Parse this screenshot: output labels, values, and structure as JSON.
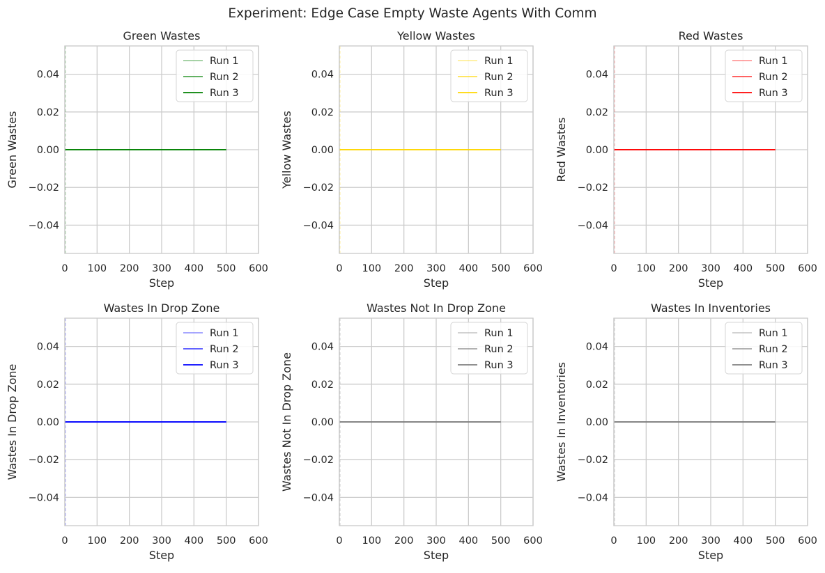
{
  "figure": {
    "suptitle": "Experiment: Edge Case Empty Waste Agents With Comm"
  },
  "chart_data": [
    {
      "type": "line",
      "title": "Green Wastes",
      "xlabel": "Step",
      "ylabel": "Green Wastes",
      "xlim": [
        0,
        600
      ],
      "ylim": [
        -0.055,
        0.055
      ],
      "xticks": [
        "0",
        "100",
        "200",
        "300",
        "400",
        "500",
        "600"
      ],
      "yticks": [
        "0.04",
        "0.02",
        "0.00",
        "−0.02",
        "−0.04"
      ],
      "grid": true,
      "legend_position": "top-right",
      "series": [
        {
          "name": "Run 1",
          "color": "#008000",
          "opacity": 0.4,
          "x": [
            0,
            500
          ],
          "y": [
            0,
            0
          ]
        },
        {
          "name": "Run 2",
          "color": "#008000",
          "opacity": 0.7,
          "x": [
            0,
            500
          ],
          "y": [
            0,
            0
          ]
        },
        {
          "name": "Run 3",
          "color": "#008000",
          "opacity": 1.0,
          "x": [
            0,
            500
          ],
          "y": [
            0,
            0
          ]
        }
      ]
    },
    {
      "type": "line",
      "title": "Yellow Wastes",
      "xlabel": "Step",
      "ylabel": "Yellow Wastes",
      "xlim": [
        0,
        600
      ],
      "ylim": [
        -0.055,
        0.055
      ],
      "xticks": [
        "0",
        "100",
        "200",
        "300",
        "400",
        "500",
        "600"
      ],
      "yticks": [
        "0.04",
        "0.02",
        "0.00",
        "−0.02",
        "−0.04"
      ],
      "grid": true,
      "legend_position": "top-right",
      "series": [
        {
          "name": "Run 1",
          "color": "#FFD700",
          "opacity": 0.4,
          "x": [
            0,
            500
          ],
          "y": [
            0,
            0
          ]
        },
        {
          "name": "Run 2",
          "color": "#FFD700",
          "opacity": 0.7,
          "x": [
            0,
            500
          ],
          "y": [
            0,
            0
          ]
        },
        {
          "name": "Run 3",
          "color": "#FFD700",
          "opacity": 1.0,
          "x": [
            0,
            500
          ],
          "y": [
            0,
            0
          ]
        }
      ]
    },
    {
      "type": "line",
      "title": "Red Wastes",
      "xlabel": "Step",
      "ylabel": "Red Wastes",
      "xlim": [
        0,
        600
      ],
      "ylim": [
        -0.055,
        0.055
      ],
      "xticks": [
        "0",
        "100",
        "200",
        "300",
        "400",
        "500",
        "600"
      ],
      "yticks": [
        "0.04",
        "0.02",
        "0.00",
        "−0.02",
        "−0.04"
      ],
      "grid": true,
      "legend_position": "top-right",
      "series": [
        {
          "name": "Run 1",
          "color": "#FF0000",
          "opacity": 0.4,
          "x": [
            0,
            500
          ],
          "y": [
            0,
            0
          ]
        },
        {
          "name": "Run 2",
          "color": "#FF0000",
          "opacity": 0.7,
          "x": [
            0,
            500
          ],
          "y": [
            0,
            0
          ]
        },
        {
          "name": "Run 3",
          "color": "#FF0000",
          "opacity": 1.0,
          "x": [
            0,
            500
          ],
          "y": [
            0,
            0
          ]
        }
      ]
    },
    {
      "type": "line",
      "title": "Wastes In Drop Zone",
      "xlabel": "Step",
      "ylabel": "Wastes In Drop Zone",
      "xlim": [
        0,
        600
      ],
      "ylim": [
        -0.055,
        0.055
      ],
      "xticks": [
        "0",
        "100",
        "200",
        "300",
        "400",
        "500",
        "600"
      ],
      "yticks": [
        "0.04",
        "0.02",
        "0.00",
        "−0.02",
        "−0.04"
      ],
      "grid": true,
      "legend_position": "top-right",
      "series": [
        {
          "name": "Run 1",
          "color": "#0000FF",
          "opacity": 0.4,
          "x": [
            0,
            500
          ],
          "y": [
            0,
            0
          ]
        },
        {
          "name": "Run 2",
          "color": "#0000FF",
          "opacity": 0.7,
          "x": [
            0,
            500
          ],
          "y": [
            0,
            0
          ]
        },
        {
          "name": "Run 3",
          "color": "#0000FF",
          "opacity": 1.0,
          "x": [
            0,
            500
          ],
          "y": [
            0,
            0
          ]
        }
      ]
    },
    {
      "type": "line",
      "title": "Wastes Not In Drop Zone",
      "xlabel": "Step",
      "ylabel": "Wastes Not In Drop Zone",
      "xlim": [
        0,
        600
      ],
      "ylim": [
        -0.055,
        0.055
      ],
      "xticks": [
        "0",
        "100",
        "200",
        "300",
        "400",
        "500",
        "600"
      ],
      "yticks": [
        "0.04",
        "0.02",
        "0.00",
        "−0.02",
        "−0.04"
      ],
      "grid": true,
      "legend_position": "top-right",
      "series": [
        {
          "name": "Run 1",
          "color": "#808080",
          "opacity": 0.4,
          "x": [
            0,
            500
          ],
          "y": [
            0,
            0
          ]
        },
        {
          "name": "Run 2",
          "color": "#808080",
          "opacity": 0.7,
          "x": [
            0,
            500
          ],
          "y": [
            0,
            0
          ]
        },
        {
          "name": "Run 3",
          "color": "#808080",
          "opacity": 1.0,
          "x": [
            0,
            500
          ],
          "y": [
            0,
            0
          ]
        }
      ]
    },
    {
      "type": "line",
      "title": "Wastes In Inventories",
      "xlabel": "Step",
      "ylabel": "Wastes In Inventories",
      "xlim": [
        0,
        600
      ],
      "ylim": [
        -0.055,
        0.055
      ],
      "xticks": [
        "0",
        "100",
        "200",
        "300",
        "400",
        "500",
        "600"
      ],
      "yticks": [
        "0.04",
        "0.02",
        "0.00",
        "−0.02",
        "−0.04"
      ],
      "grid": true,
      "legend_position": "top-right",
      "series": [
        {
          "name": "Run 1",
          "color": "#808080",
          "opacity": 0.4,
          "x": [
            0,
            500
          ],
          "y": [
            0,
            0
          ]
        },
        {
          "name": "Run 2",
          "color": "#808080",
          "opacity": 0.7,
          "x": [
            0,
            500
          ],
          "y": [
            0,
            0
          ]
        },
        {
          "name": "Run 3",
          "color": "#808080",
          "opacity": 1.0,
          "x": [
            0,
            500
          ],
          "y": [
            0,
            0
          ]
        }
      ]
    }
  ]
}
